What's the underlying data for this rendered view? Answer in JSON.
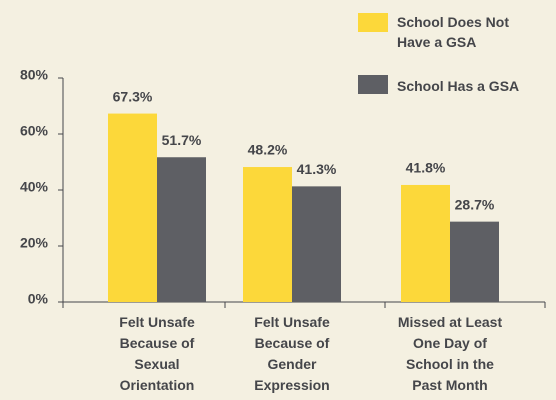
{
  "chart_data": {
    "type": "bar",
    "categories": [
      [
        "Felt Unsafe",
        "Because of",
        "Sexual",
        "Orientation"
      ],
      [
        "Felt Unsafe",
        "Because of",
        "Gender",
        "Expression"
      ],
      [
        "Missed at Least",
        "One Day of",
        "School in the",
        "Past Month"
      ]
    ],
    "series": [
      {
        "name": "School Does Not Have a GSA",
        "color": "#fcd83a",
        "values": [
          67.3,
          48.2,
          41.8
        ],
        "value_labels": [
          "67.3%",
          "48.2%",
          "41.8%"
        ]
      },
      {
        "name": "School Has a GSA",
        "color": "#5e5f64",
        "values": [
          51.7,
          41.3,
          28.7
        ],
        "value_labels": [
          "51.7%",
          "41.3%",
          "28.7%"
        ]
      }
    ],
    "ylim": [
      0,
      80
    ],
    "yticks": [
      {
        "value": 0,
        "label": "0%"
      },
      {
        "value": 20,
        "label": "20%"
      },
      {
        "value": 40,
        "label": "40%"
      },
      {
        "value": 60,
        "label": "60%"
      },
      {
        "value": 80,
        "label": "80%"
      }
    ],
    "legend": "top-right",
    "grid": false
  }
}
